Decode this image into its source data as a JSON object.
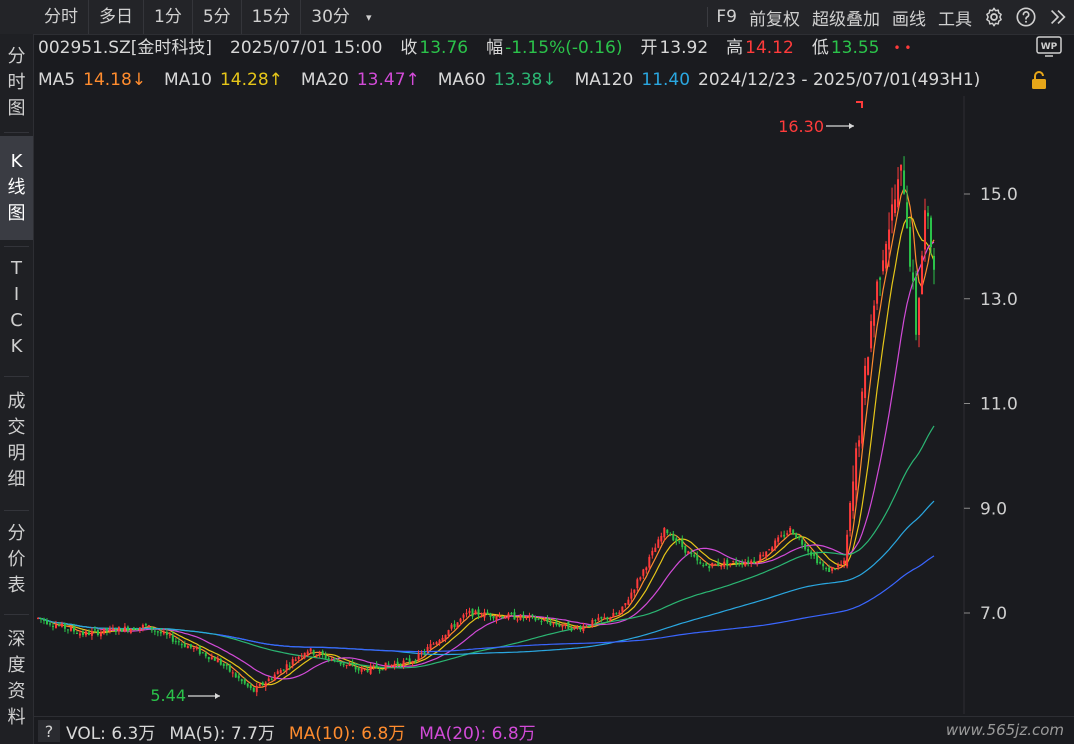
{
  "toolbar": {
    "timeframes": [
      "分时",
      "多日",
      "1分",
      "5分",
      "15分",
      "30分"
    ],
    "caret": "▾",
    "tools": [
      "F9",
      "前复权",
      "超级叠加",
      "画线",
      "工具"
    ],
    "icons": [
      "gear-icon",
      "help-icon",
      "double-chevron-right-icon"
    ]
  },
  "sidebar": {
    "items": [
      {
        "label": "分时图",
        "chars": [
          "分",
          "时",
          "图"
        ]
      },
      {
        "label": "K线图",
        "chars": [
          "K",
          "线",
          "图"
        ],
        "active": true
      },
      {
        "label": "TICK",
        "chars": [
          "T",
          "I",
          "C",
          "K"
        ]
      },
      {
        "label": "成交明细",
        "chars": [
          "成",
          "交",
          "明",
          "细"
        ]
      },
      {
        "label": "分价表",
        "chars": [
          "分",
          "价",
          "表"
        ]
      },
      {
        "label": "深度资料",
        "chars": [
          "深",
          "度",
          "资",
          "料"
        ]
      }
    ]
  },
  "info": {
    "code": "002951.SZ[金时科技]",
    "datetime": "2025/07/01 15:00",
    "close_label": "收",
    "close_value": "13.76",
    "change_label": "幅",
    "change_value": "-1.15%(-0.16)",
    "open_label": "开",
    "open_value": "13.92",
    "high_label": "高",
    "high_value": "14.12",
    "low_label": "低",
    "low_value": "13.55"
  },
  "ma": {
    "ma5_label": "MA5",
    "ma5_value": "14.18↓",
    "ma10_label": "MA10",
    "ma10_value": "14.28↑",
    "ma20_label": "MA20",
    "ma20_value": "13.47↑",
    "ma60_label": "MA60",
    "ma60_value": "13.38↓",
    "ma120_label": "MA120",
    "ma120_value": "11.40",
    "range_text": "2024/12/23 - 2025/07/01(493H1)"
  },
  "chart": {
    "y_ticks": [
      "15.0",
      "13.0",
      "11.0",
      "9.0",
      "7.0"
    ],
    "high_marker": "16.30",
    "low_marker": "5.44"
  },
  "volume": {
    "qmark": "?",
    "vol_text": "VOL: 6.3万",
    "ma5_text": "MA(5): 7.7万",
    "ma10_text": "MA(10): 6.8万",
    "ma20_text": "MA(20): 6.8万"
  },
  "watermark": "www.565jz.com",
  "colors": {
    "up": "#ff3b3b",
    "down": "#2bc24a",
    "ma5": "#ff8c2e",
    "ma10": "#e6c619",
    "ma20": "#d24bd8",
    "ma60": "#2bb673",
    "ma120": "#2aa7e0",
    "ma250": "#3a66ff"
  }
}
